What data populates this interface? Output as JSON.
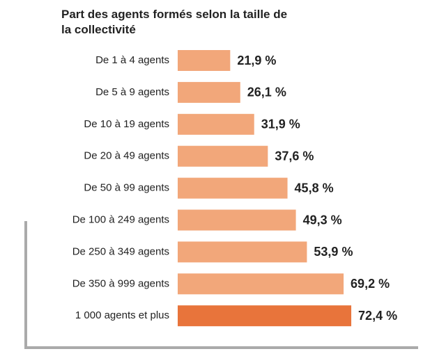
{
  "chart_data": {
    "type": "hbar",
    "title": "Part des agents formés selon la taille de la collectivité",
    "categories": [
      "De 1 à 4 agents",
      "De 5 à 9 agents",
      "De 10 à 19 agents",
      "De 20 à 49 agents",
      "De 50 à 99 agents",
      "De 100 à 249 agents",
      "De 250 à 349 agents",
      "De 350 à 999 agents",
      "1 000 agents et plus"
    ],
    "values": [
      21.9,
      26.1,
      31.9,
      37.6,
      45.8,
      49.3,
      53.9,
      69.2,
      72.4
    ],
    "value_labels": [
      "21,9 %",
      "26,1 %",
      "31,9 %",
      "37,6 %",
      "45,8 %",
      "49,3 %",
      "53,9 %",
      "69,2 %",
      "72,4 %"
    ],
    "colors": [
      "#f2a77a",
      "#f2a77a",
      "#f2a77a",
      "#f2a77a",
      "#f2a77a",
      "#f2a77a",
      "#f2a77a",
      "#f2a77a",
      "#e8743b"
    ]
  }
}
